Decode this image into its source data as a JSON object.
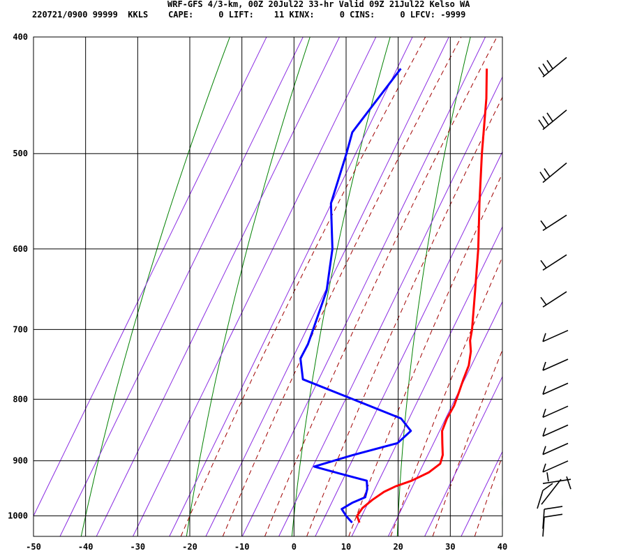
{
  "header": {
    "title": "WRF-GFS 4/3-km, 00Z 20Jul22 33-hr Valid 09Z 21Jul22 Kelso WA",
    "indices": "220721/0900 99999  KKLS    CAPE:     0 LIFT:    11 KINX:     0 CINS:     0 LFCV: -9999"
  },
  "chart_data": {
    "type": "line",
    "title": "WRF-GFS 4/3-km, 00Z 20Jul22 33-hr Valid 09Z 21Jul22 Kelso WA",
    "xlabel": "",
    "ylabel": "",
    "x_axis": {
      "ticks": [
        -50,
        -40,
        -30,
        -20,
        -10,
        0,
        10,
        20,
        30,
        40
      ],
      "range": [
        -50,
        40
      ]
    },
    "y_axis": {
      "ticks": [
        400,
        500,
        600,
        700,
        800,
        900,
        1000
      ],
      "range": [
        400,
        1040
      ],
      "scale": "log-pressure skew-T"
    },
    "grid": true,
    "background_lines": {
      "dry_adiabats": "green",
      "moist_adiabats": "dark-red dashed",
      "mixing_ratio": "purple"
    },
    "series": [
      {
        "color": "#ff0000",
        "points": [
          {
            "p": 1013,
            "t": 13.7
          },
          {
            "p": 1000,
            "t": 12.1
          },
          {
            "p": 985,
            "t": 11.8
          },
          {
            "p": 970,
            "t": 12.3
          },
          {
            "p": 955,
            "t": 13.2
          },
          {
            "p": 945,
            "t": 14.5
          },
          {
            "p": 935,
            "t": 16.6
          },
          {
            "p": 920,
            "t": 18.5
          },
          {
            "p": 905,
            "t": 19.2
          },
          {
            "p": 890,
            "t": 18.2
          },
          {
            "p": 870,
            "t": 16.1
          },
          {
            "p": 850,
            "t": 14.0
          },
          {
            "p": 830,
            "t": 12.8
          },
          {
            "p": 810,
            "t": 12.0
          },
          {
            "p": 790,
            "t": 10.7
          },
          {
            "p": 770,
            "t": 9.3
          },
          {
            "p": 750,
            "t": 8.0
          },
          {
            "p": 730,
            "t": 6.0
          },
          {
            "p": 715,
            "t": 4.0
          },
          {
            "p": 700,
            "t": 2.5
          },
          {
            "p": 650,
            "t": -3.5
          },
          {
            "p": 600,
            "t": -10.0
          },
          {
            "p": 550,
            "t": -17.5
          },
          {
            "p": 500,
            "t": -25.5
          },
          {
            "p": 450,
            "t": -34.0
          },
          {
            "p": 425,
            "t": -39.0
          }
        ]
      },
      {
        "color": "#0000ff",
        "points": [
          {
            "p": 1013,
            "t": 12.3
          },
          {
            "p": 1000,
            "t": 10.0
          },
          {
            "p": 987,
            "t": 8.0
          },
          {
            "p": 975,
            "t": 9.0
          },
          {
            "p": 965,
            "t": 10.5
          },
          {
            "p": 950,
            "t": 9.5
          },
          {
            "p": 935,
            "t": 8.0
          },
          {
            "p": 922,
            "t": 1.5
          },
          {
            "p": 910,
            "t": -4.5
          },
          {
            "p": 890,
            "t": 1.0
          },
          {
            "p": 870,
            "t": 7.5
          },
          {
            "p": 850,
            "t": 8.0
          },
          {
            "p": 830,
            "t": 4.0
          },
          {
            "p": 800,
            "t": -8.5
          },
          {
            "p": 770,
            "t": -21.5
          },
          {
            "p": 740,
            "t": -25.5
          },
          {
            "p": 720,
            "t": -26.5
          },
          {
            "p": 700,
            "t": -28.0
          },
          {
            "p": 650,
            "t": -32.0
          },
          {
            "p": 600,
            "t": -38.0
          },
          {
            "p": 550,
            "t": -46.0
          },
          {
            "p": 500,
            "t": -51.5
          },
          {
            "p": 480,
            "t": -54.0
          },
          {
            "p": 425,
            "t": -55.5
          }
        ]
      }
    ],
    "wind_barbs": [
      {
        "p": 425,
        "shape": "barb-a"
      },
      {
        "p": 470,
        "shape": "barb-a"
      },
      {
        "p": 520,
        "shape": "barb-b"
      },
      {
        "p": 570,
        "shape": "barb-c"
      },
      {
        "p": 615,
        "shape": "barb-c"
      },
      {
        "p": 660,
        "shape": "barb-c"
      },
      {
        "p": 705,
        "shape": "barb-d"
      },
      {
        "p": 745,
        "shape": "barb-d"
      },
      {
        "p": 780,
        "shape": "barb-d"
      },
      {
        "p": 815,
        "shape": "barb-d"
      },
      {
        "p": 845,
        "shape": "barb-d"
      },
      {
        "p": 875,
        "shape": "barb-d"
      },
      {
        "p": 905,
        "shape": "barb-d"
      },
      {
        "p": 925,
        "shape": "barb-e"
      },
      {
        "p": 955,
        "shape": "barb-f"
      },
      {
        "p": 990,
        "shape": "barb-g"
      },
      {
        "p": 1005,
        "shape": "barb-g"
      }
    ]
  }
}
